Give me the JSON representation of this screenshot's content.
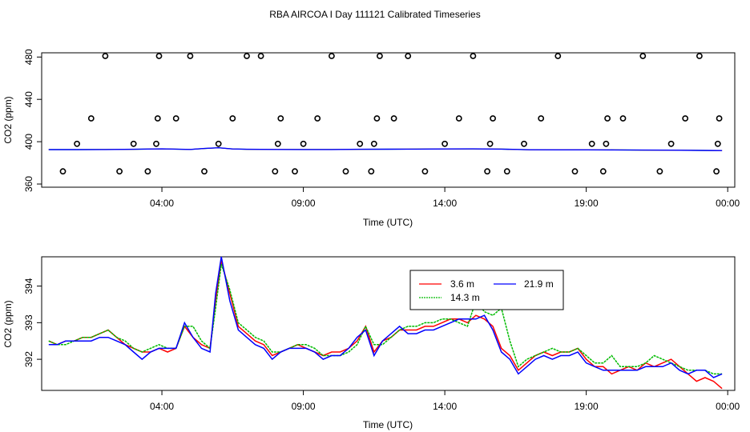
{
  "title": "RBA AIRCOA I  Day 111121  Calibrated Timeseries",
  "chart_data": [
    {
      "type": "scatter",
      "xlabel": "Time (UTC)",
      "ylabel": "CO2 (ppm)",
      "x_ticks": [
        "04:00",
        "09:00",
        "14:00",
        "19:00",
        "00:00"
      ],
      "x_tick_hours": [
        4,
        9,
        14,
        19,
        24
      ],
      "xlim_hours": [
        -0.25,
        24.25
      ],
      "y_ticks": [
        "360",
        "400",
        "440",
        "480"
      ],
      "y_tick_values": [
        360,
        400,
        440,
        480
      ],
      "ylim": [
        357,
        484
      ],
      "points": {
        "x_hours": [
          0.5,
          1.0,
          1.5,
          2.0,
          2.5,
          3.0,
          3.5,
          3.8,
          3.85,
          3.9,
          4.5,
          5.0,
          5.5,
          6.0,
          6.5,
          7.0,
          7.5,
          8.0,
          8.1,
          8.2,
          8.7,
          9.0,
          9.5,
          10.0,
          10.5,
          11.0,
          11.4,
          11.5,
          11.6,
          11.7,
          12.2,
          12.7,
          13.3,
          14.0,
          14.5,
          15.0,
          15.5,
          15.6,
          15.7,
          16.2,
          16.8,
          17.4,
          18.0,
          18.6,
          19.2,
          19.6,
          19.7,
          19.75,
          20.3,
          21.0,
          21.6,
          22.0,
          22.5,
          23.0,
          23.6,
          23.65,
          23.7
        ],
        "y_values": [
          372,
          398,
          422,
          481,
          372,
          398,
          372,
          398,
          422,
          481,
          422,
          481,
          372,
          398,
          422,
          481,
          481,
          372,
          398,
          422,
          372,
          398,
          422,
          481,
          372,
          398,
          372,
          398,
          422,
          481,
          422,
          481,
          372,
          398,
          422,
          481,
          372,
          398,
          422,
          372,
          398,
          422,
          481,
          372,
          398,
          372,
          398,
          422,
          422,
          481,
          372,
          398,
          422,
          481,
          372,
          398,
          422
        ]
      },
      "baseline": {
        "x_hours": [
          0,
          1,
          2,
          3,
          4,
          5,
          5.5,
          6,
          6.5,
          7,
          8,
          9,
          10,
          11,
          12,
          13,
          14,
          15,
          16,
          17,
          18,
          19,
          20,
          21,
          22,
          23,
          23.8
        ],
        "values": [
          392.5,
          392.5,
          392.6,
          392.8,
          393.2,
          392.7,
          393.6,
          394.3,
          393.1,
          392.8,
          392.7,
          392.6,
          392.6,
          392.8,
          392.9,
          393.0,
          393.1,
          393.2,
          393.0,
          392.4,
          392.3,
          392.3,
          392.2,
          392.1,
          392.0,
          391.8,
          391.6
        ]
      }
    },
    {
      "type": "line",
      "xlabel": "Time (UTC)",
      "ylabel": "CO2 (ppm)",
      "x_ticks": [
        "04:00",
        "09:00",
        "14:00",
        "19:00",
        "00:00"
      ],
      "x_tick_hours": [
        4,
        9,
        14,
        19,
        24
      ],
      "xlim_hours": [
        -0.25,
        24.25
      ],
      "y_ticks": [
        "392",
        "393",
        "394"
      ],
      "y_tick_values": [
        392,
        393,
        394
      ],
      "ylim": [
        391.15,
        394.8
      ],
      "legend_position": "top-right",
      "x_hours": [
        0,
        0.3,
        0.6,
        0.9,
        1.2,
        1.5,
        1.8,
        2.1,
        2.4,
        2.7,
        3.0,
        3.3,
        3.6,
        3.9,
        4.2,
        4.5,
        4.8,
        5.1,
        5.4,
        5.7,
        5.9,
        6.1,
        6.4,
        6.7,
        7.0,
        7.3,
        7.6,
        7.9,
        8.2,
        8.5,
        8.8,
        9.1,
        9.4,
        9.7,
        10.0,
        10.3,
        10.6,
        10.9,
        11.2,
        11.5,
        11.8,
        12.1,
        12.4,
        12.7,
        13.0,
        13.3,
        13.6,
        13.9,
        14.2,
        14.5,
        14.8,
        15.1,
        15.4,
        15.7,
        16.0,
        16.3,
        16.6,
        16.9,
        17.2,
        17.5,
        17.8,
        18.1,
        18.4,
        18.7,
        19.0,
        19.3,
        19.6,
        19.9,
        20.2,
        20.5,
        20.8,
        21.1,
        21.4,
        21.7,
        22.0,
        22.3,
        22.6,
        22.9,
        23.2,
        23.5,
        23.8
      ],
      "series": [
        {
          "name": "3.6 m",
          "color": "#ff0000",
          "values": [
            392.5,
            392.4,
            392.5,
            392.5,
            392.6,
            392.6,
            392.7,
            392.8,
            392.6,
            392.4,
            392.3,
            392.2,
            392.2,
            392.3,
            392.2,
            392.3,
            392.9,
            392.6,
            392.4,
            392.3,
            393.6,
            394.7,
            393.8,
            392.9,
            392.7,
            392.5,
            392.4,
            392.1,
            392.2,
            392.3,
            392.4,
            392.3,
            392.2,
            392.1,
            392.2,
            392.2,
            392.3,
            392.5,
            392.9,
            392.2,
            392.5,
            392.6,
            392.8,
            392.8,
            392.8,
            392.9,
            392.9,
            393.0,
            393.1,
            393.1,
            393.0,
            393.2,
            393.1,
            392.9,
            392.3,
            392.1,
            391.7,
            391.9,
            392.1,
            392.2,
            392.1,
            392.2,
            392.2,
            392.3,
            392.0,
            391.8,
            391.8,
            391.6,
            391.7,
            391.8,
            391.7,
            391.9,
            391.8,
            391.9,
            392.0,
            391.8,
            391.6,
            391.4,
            391.5,
            391.4,
            391.2
          ]
        },
        {
          "name": "14.3 m",
          "color": "#00bb00",
          "values": [
            392.5,
            392.4,
            392.4,
            392.5,
            392.6,
            392.6,
            392.7,
            392.8,
            392.6,
            392.5,
            392.3,
            392.2,
            392.3,
            392.4,
            392.3,
            392.3,
            392.9,
            392.9,
            392.5,
            392.3,
            393.4,
            394.6,
            393.9,
            393.0,
            392.8,
            392.6,
            392.5,
            392.2,
            392.2,
            392.3,
            392.4,
            392.4,
            392.3,
            392.1,
            392.1,
            392.1,
            392.2,
            392.4,
            392.9,
            392.4,
            392.4,
            392.6,
            392.8,
            392.9,
            392.9,
            393.0,
            393.0,
            393.1,
            393.1,
            393.0,
            392.9,
            393.6,
            393.3,
            393.2,
            393.4,
            392.5,
            391.8,
            392.0,
            392.1,
            392.2,
            392.3,
            392.2,
            392.2,
            392.3,
            392.1,
            391.9,
            391.9,
            392.1,
            391.8,
            391.8,
            391.8,
            391.9,
            392.1,
            392.0,
            391.9,
            391.8,
            391.7,
            391.7,
            391.7,
            391.6,
            391.6
          ]
        },
        {
          "name": "21.9 m",
          "color": "#0000ff",
          "values": [
            392.4,
            392.4,
            392.5,
            392.5,
            392.5,
            392.5,
            392.6,
            392.6,
            392.5,
            392.4,
            392.2,
            392.0,
            392.2,
            392.3,
            392.3,
            392.3,
            393.0,
            392.6,
            392.3,
            392.2,
            393.8,
            394.8,
            393.6,
            392.8,
            392.6,
            392.4,
            392.3,
            392.0,
            392.2,
            392.3,
            392.3,
            392.3,
            392.2,
            392.0,
            392.1,
            392.1,
            392.3,
            392.6,
            392.8,
            392.1,
            392.5,
            392.7,
            392.9,
            392.7,
            392.7,
            392.8,
            392.8,
            392.9,
            393.0,
            393.1,
            393.1,
            393.1,
            393.2,
            392.8,
            392.2,
            392.0,
            391.6,
            391.8,
            392.0,
            392.1,
            392.0,
            392.1,
            392.1,
            392.2,
            391.9,
            391.8,
            391.7,
            391.7,
            391.7,
            391.7,
            391.7,
            391.8,
            391.8,
            391.8,
            391.9,
            391.7,
            391.6,
            391.7,
            391.7,
            391.5,
            391.6
          ]
        }
      ]
    }
  ]
}
